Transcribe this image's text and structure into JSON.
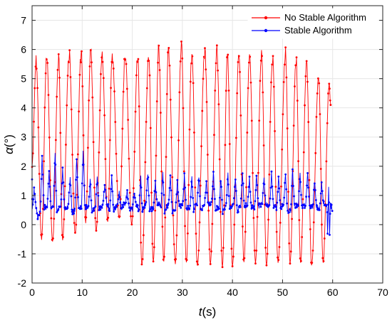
{
  "chart_data": {
    "type": "line",
    "xlabel_symbol": "t",
    "xlabel_unit": "(s)",
    "ylabel_symbol": "α",
    "ylabel_unit": "(°)",
    "xlim": [
      0,
      70
    ],
    "ylim": [
      -2,
      7.5
    ],
    "xticks": [
      0,
      10,
      20,
      30,
      40,
      50,
      60,
      70
    ],
    "yticks": [
      -2,
      -1,
      0,
      1,
      2,
      3,
      4,
      5,
      6,
      7
    ],
    "grid": true,
    "legend_position": "top-right",
    "series": [
      {
        "name": "No Stable Algorithm",
        "color": "#ff0000",
        "x_start": 0.0,
        "x_end": 59.6,
        "cycle_peaks": [
          [
            0.8,
            5.6
          ],
          [
            2.9,
            5.8
          ],
          [
            5.3,
            5.7
          ],
          [
            7.4,
            5.9
          ],
          [
            9.8,
            5.9
          ],
          [
            11.7,
            5.9
          ],
          [
            14.0,
            5.8
          ],
          [
            16.0,
            5.8
          ],
          [
            18.6,
            5.8
          ],
          [
            21.1,
            5.8
          ],
          [
            23.3,
            5.8
          ],
          [
            25.3,
            6.0
          ],
          [
            27.2,
            5.9
          ],
          [
            29.8,
            6.1
          ],
          [
            31.9,
            5.9
          ],
          [
            34.5,
            6.0
          ],
          [
            36.9,
            5.9
          ],
          [
            39.0,
            5.8
          ],
          [
            41.3,
            5.8
          ],
          [
            43.4,
            5.8
          ],
          [
            45.8,
            5.8
          ],
          [
            48.0,
            5.8
          ],
          [
            50.6,
            5.8
          ],
          [
            52.7,
            5.7
          ],
          [
            54.8,
            5.5
          ],
          [
            57.2,
            5.1
          ],
          [
            59.3,
            4.8
          ]
        ],
        "cycle_troughs": [
          [
            1.9,
            -0.5
          ],
          [
            4.1,
            -0.6
          ],
          [
            6.1,
            -0.5
          ],
          [
            8.6,
            -0.3
          ],
          [
            10.7,
            0.1
          ],
          [
            12.8,
            -0.2
          ],
          [
            15.1,
            0.1
          ],
          [
            17.4,
            0.2
          ],
          [
            19.9,
            0.0
          ],
          [
            21.9,
            -1.4
          ],
          [
            24.2,
            -1.3
          ],
          [
            26.3,
            -1.3
          ],
          [
            28.6,
            -1.3
          ],
          [
            30.8,
            -1.3
          ],
          [
            33.0,
            -1.4
          ],
          [
            35.6,
            -1.3
          ],
          [
            38.0,
            -1.4
          ],
          [
            40.0,
            -1.4
          ],
          [
            42.3,
            -1.3
          ],
          [
            44.6,
            -1.3
          ],
          [
            46.8,
            -1.4
          ],
          [
            49.1,
            -1.3
          ],
          [
            51.5,
            -1.3
          ],
          [
            53.6,
            -1.3
          ],
          [
            55.8,
            -1.4
          ],
          [
            58.1,
            -1.3
          ]
        ],
        "final_value": 4.1
      },
      {
        "name": "Stable Algorithm",
        "color": "#0000ff",
        "x_start": 0.0,
        "x_end": 60.0,
        "peaks": [
          [
            0.4,
            1.2
          ],
          [
            2.0,
            2.4
          ],
          [
            3.4,
            1.8
          ],
          [
            4.6,
            2.4
          ],
          [
            6.1,
            1.9
          ],
          [
            7.6,
            1.6
          ],
          [
            8.9,
            2.3
          ],
          [
            10.2,
            2.5
          ],
          [
            11.6,
            1.5
          ],
          [
            13.0,
            1.6
          ],
          [
            14.5,
            1.4
          ],
          [
            15.9,
            1.7
          ],
          [
            17.4,
            1.1
          ],
          [
            19.0,
            1.2
          ],
          [
            20.4,
            1.1
          ],
          [
            21.7,
            1.6
          ],
          [
            23.1,
            1.8
          ],
          [
            24.6,
            1.5
          ],
          [
            26.1,
            1.8
          ],
          [
            27.6,
            1.6
          ],
          [
            29.0,
            1.5
          ],
          [
            30.4,
            1.7
          ],
          [
            31.9,
            1.6
          ],
          [
            33.3,
            1.7
          ],
          [
            34.8,
            1.5
          ],
          [
            36.2,
            1.8
          ],
          [
            37.7,
            1.6
          ],
          [
            39.1,
            1.7
          ],
          [
            40.6,
            1.6
          ],
          [
            42.0,
            1.8
          ],
          [
            43.4,
            1.6
          ],
          [
            44.8,
            1.7
          ],
          [
            46.3,
            1.6
          ],
          [
            47.8,
            1.8
          ],
          [
            49.2,
            1.6
          ],
          [
            50.6,
            1.8
          ],
          [
            52.0,
            1.9
          ],
          [
            53.5,
            1.7
          ],
          [
            55.0,
            1.8
          ],
          [
            56.4,
            1.5
          ],
          [
            57.8,
            1.4
          ],
          [
            59.2,
            1.3
          ]
        ],
        "base_level": 0.6,
        "min_values": [
          [
            1.2,
            0.2
          ],
          [
            8.0,
            0.4
          ],
          [
            22.0,
            0.4
          ],
          [
            59.0,
            -0.3
          ],
          [
            59.4,
            -0.4
          ]
        ],
        "final_value": 0.5
      }
    ]
  }
}
